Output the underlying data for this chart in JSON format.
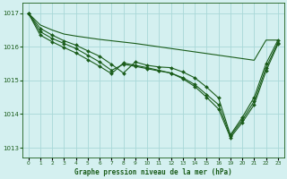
{
  "title": "Graphe pression niveau de la mer (hPa)",
  "bg_color": "#d4f0f0",
  "grid_color": "#a8d8d8",
  "line_color": "#1a5c1a",
  "marker_color": "#1a5c1a",
  "ylim": [
    1012.7,
    1017.3
  ],
  "yticks": [
    1013,
    1014,
    1015,
    1016,
    1017
  ],
  "xlim": [
    -0.5,
    21.5
  ],
  "xtick_positions": [
    0,
    1,
    2,
    3,
    4,
    5,
    6,
    7,
    8,
    9,
    10,
    11,
    12,
    13,
    14,
    15,
    16,
    17,
    18,
    19,
    20,
    21
  ],
  "xtick_labels": [
    "0",
    "1",
    "2",
    "3",
    "4",
    "5",
    "6",
    "7",
    "8",
    "9",
    "10",
    "11",
    "12",
    "13",
    "14",
    "15",
    "16",
    "19",
    "20",
    "21",
    "22",
    "23"
  ],
  "series": [
    {
      "xi": [
        0,
        1,
        2,
        3,
        4,
        5,
        6,
        7,
        8,
        9,
        10,
        11,
        12,
        13,
        14,
        15,
        16,
        17,
        18,
        19,
        20,
        21
      ],
      "y": [
        1017.0,
        1016.65,
        1016.5,
        1016.38,
        1016.32,
        1016.27,
        1016.22,
        1016.18,
        1016.14,
        1016.1,
        1016.05,
        1016.0,
        1015.95,
        1015.9,
        1015.85,
        1015.8,
        1015.75,
        1015.7,
        1015.65,
        1015.6,
        1016.2,
        1016.2
      ],
      "marker": false
    },
    {
      "xi": [
        0,
        1,
        2,
        3,
        4,
        5,
        6,
        7,
        8,
        9,
        10,
        11,
        12,
        13,
        14,
        15,
        16,
        17,
        18,
        19,
        20,
        21
      ],
      "y": [
        1017.0,
        1016.55,
        1016.35,
        1016.18,
        1016.05,
        1015.88,
        1015.72,
        1015.48,
        1015.22,
        1015.55,
        1015.45,
        1015.4,
        1015.38,
        1015.25,
        1015.08,
        1014.8,
        1014.48,
        1013.38,
        1013.9,
        1014.5,
        1015.5,
        1016.2
      ],
      "marker": true
    },
    {
      "xi": [
        0,
        1,
        2,
        3,
        4,
        5,
        6,
        7,
        8,
        9,
        10,
        11,
        12,
        13,
        14,
        15,
        16,
        17,
        18,
        19,
        20,
        21
      ],
      "y": [
        1017.0,
        1016.45,
        1016.25,
        1016.1,
        1015.95,
        1015.75,
        1015.55,
        1015.3,
        1015.48,
        1015.42,
        1015.35,
        1015.28,
        1015.22,
        1015.08,
        1014.88,
        1014.58,
        1014.28,
        1013.35,
        1013.82,
        1014.38,
        1015.38,
        1016.12
      ],
      "marker": true
    },
    {
      "xi": [
        0,
        1,
        2,
        3,
        4,
        5,
        6,
        7,
        8,
        9,
        10,
        11,
        12,
        13,
        14,
        15,
        16,
        17,
        18,
        19,
        20,
        21
      ],
      "y": [
        1017.0,
        1016.35,
        1016.15,
        1015.98,
        1015.82,
        1015.62,
        1015.42,
        1015.2,
        1015.52,
        1015.45,
        1015.38,
        1015.3,
        1015.22,
        1015.05,
        1014.82,
        1014.5,
        1014.15,
        1013.3,
        1013.75,
        1014.28,
        1015.28,
        1016.08
      ],
      "marker": true
    }
  ]
}
